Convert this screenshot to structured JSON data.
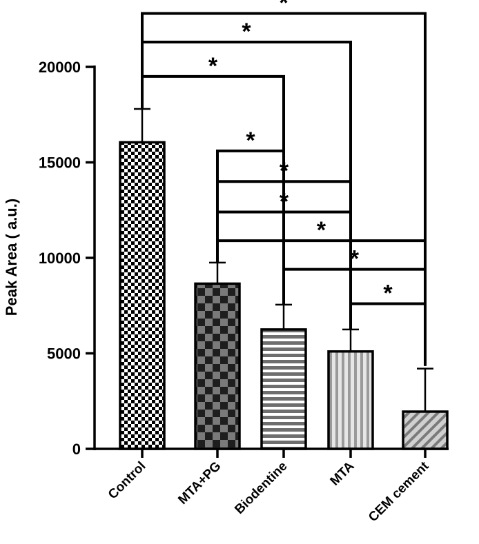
{
  "chart_data": {
    "type": "bar",
    "title": "",
    "xlabel": "",
    "ylabel": "Peak Area ( a.u.)",
    "ylim": [
      0,
      20000
    ],
    "yticks": [
      0,
      5000,
      10000,
      15000,
      20000
    ],
    "ytick_labels": [
      "0",
      "5000",
      "10000",
      "15000",
      "20000"
    ],
    "categories": [
      "Control",
      "MTA+PG",
      "Biodentine",
      "MTA",
      "CEM cement"
    ],
    "values": [
      16050,
      8650,
      6250,
      5100,
      1950
    ],
    "error_upper": [
      17800,
      9750,
      7550,
      6250,
      4200
    ],
    "patterns": [
      "small-checker",
      "large-checker",
      "horizontal-stripes",
      "vertical-stripes",
      "diagonal-stripes"
    ],
    "significance": [
      {
        "from": 0,
        "to": 4,
        "label": "*",
        "level": 22800
      },
      {
        "from": 0,
        "to": 3,
        "label": "*",
        "level": 21300
      },
      {
        "from": 0,
        "to": 2,
        "label": "*",
        "level": 19500
      },
      {
        "from": 1,
        "to": 2,
        "label": "*",
        "level": 15600
      },
      {
        "from": 1,
        "to": 3,
        "label": "*",
        "level": 14000
      },
      {
        "from": 1,
        "to": 3,
        "label": "*",
        "level": 12400
      },
      {
        "from": 1,
        "to": 4,
        "label": "*",
        "level": 10900
      },
      {
        "from": 2,
        "to": 4,
        "label": "*",
        "level": 9400
      },
      {
        "from": 3,
        "to": 4,
        "label": "*",
        "level": 7600
      }
    ]
  },
  "colors": {
    "ink": "#000000",
    "paper": "#ffffff",
    "dark_fill": "#3a3a3a",
    "mid_fill": "#7a7a7a",
    "light_fill": "#c8c8c8",
    "stripe_fill": "#8c8c8c"
  }
}
